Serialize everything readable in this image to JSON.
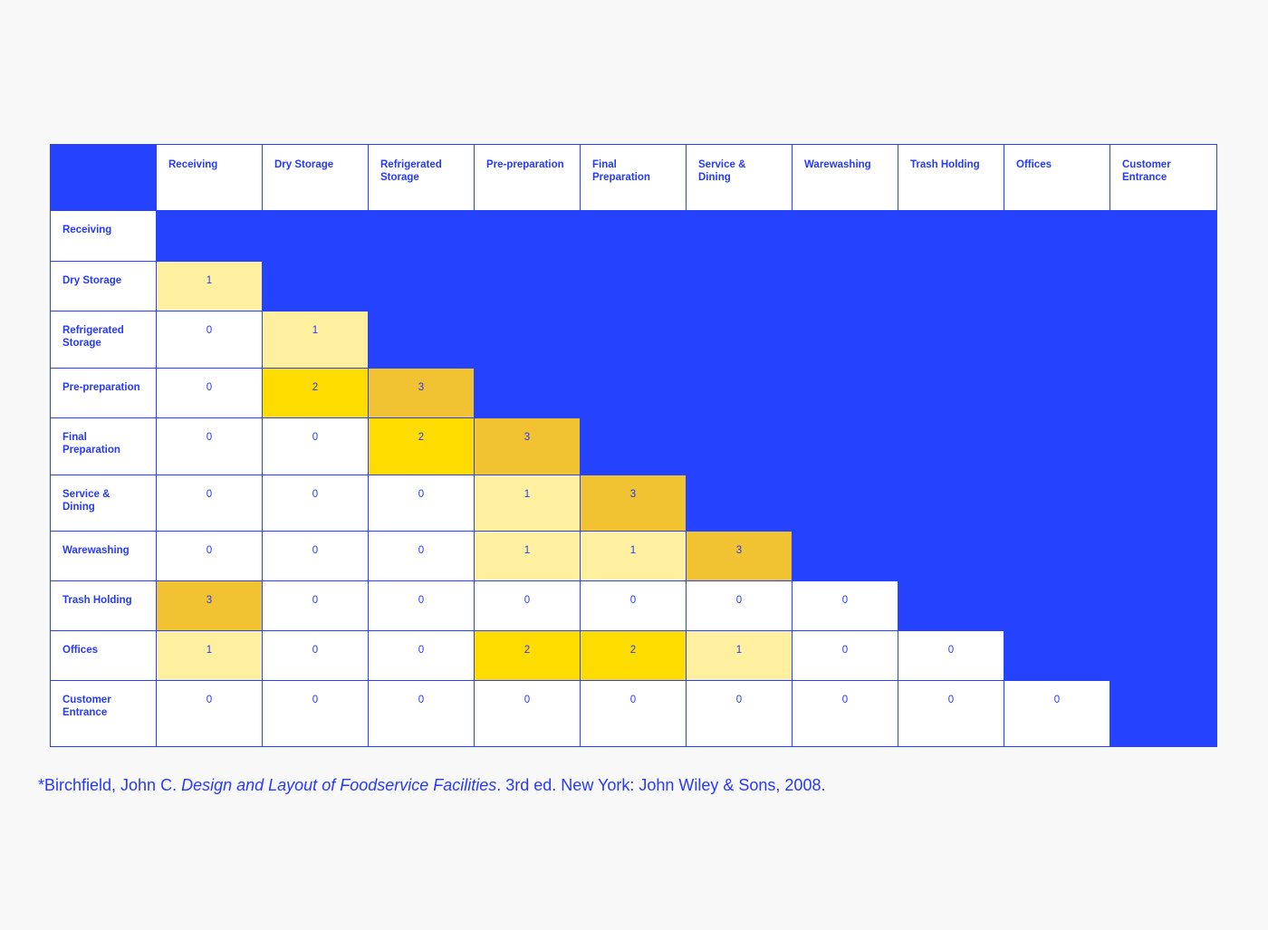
{
  "table": {
    "columns": [
      "Receiving",
      "Dry Storage",
      "Refrigerated Storage",
      "Pre-preparation",
      "Final Preparation",
      "Service & Dining",
      "Warewashing",
      "Trash Holding",
      "Offices",
      "Customer Entrance"
    ],
    "rows": [
      {
        "label": "Receiving",
        "values": []
      },
      {
        "label": "Dry Storage",
        "values": [
          1
        ]
      },
      {
        "label": "Refrigerated Storage",
        "values": [
          0,
          1
        ]
      },
      {
        "label": "Pre-preparation",
        "values": [
          0,
          2,
          3
        ]
      },
      {
        "label": "Final Preparation",
        "values": [
          0,
          0,
          2,
          3
        ]
      },
      {
        "label": "Service & Dining",
        "values": [
          0,
          0,
          0,
          1,
          3
        ]
      },
      {
        "label": "Warewashing",
        "values": [
          0,
          0,
          0,
          1,
          1,
          3
        ]
      },
      {
        "label": "Trash Holding",
        "values": [
          3,
          0,
          0,
          0,
          0,
          0,
          0
        ]
      },
      {
        "label": "Offices",
        "values": [
          1,
          0,
          0,
          2,
          2,
          1,
          0,
          0
        ]
      },
      {
        "label": "Customer Entrance",
        "values": [
          0,
          0,
          0,
          0,
          0,
          0,
          0,
          0,
          0
        ]
      }
    ],
    "level_colors": {
      "0": "#ffffff",
      "1": "#fff0a0",
      "2": "#ffdc00",
      "3": "#f1c232"
    },
    "empty_color": "#2543ff",
    "text_color": "#2539ff"
  },
  "citation": {
    "before": "*Birchfield, John C. ",
    "title": "Design and Layout of Foodservice Facilities",
    "after": ". 3rd ed. New York: John Wiley & Sons, 2008."
  }
}
